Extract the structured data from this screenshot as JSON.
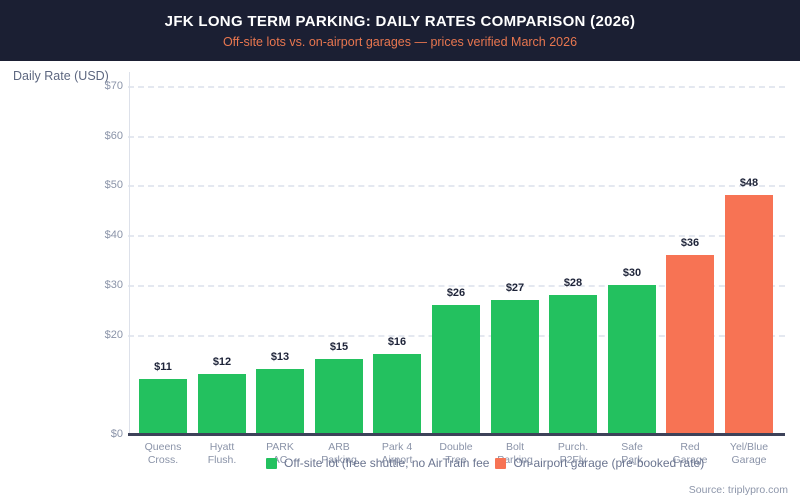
{
  "colors": {
    "header_bg": "#1b1f33",
    "title_text": "#ffffff",
    "subtitle_text": "#e8764f",
    "offsite_green": "#23c15f",
    "garage_orange": "#f77354",
    "grid_line": "#e4e8f0",
    "x_axis_line": "#3d4259",
    "tick_text": "#8a93a8",
    "category_text": "#8a93a8",
    "ylabel_text": "#5d6780",
    "value_text": "#1d2338",
    "legend_text": "#6b7590",
    "source_text": "#8d96aa"
  },
  "chart_data": {
    "type": "bar",
    "title": "JFK LONG TERM PARKING: DAILY RATES COMPARISON (2026)",
    "subtitle": "Off-site lots vs. on-airport garages — prices verified March 2026",
    "ylabel": "Daily Rate (USD)",
    "source": "Source: triplypro.com",
    "categories": [
      "Queens\nCross.",
      "Hyatt\nFlush.",
      "PARK\nAC",
      "ARB\nParking",
      "Park 4\nAirport",
      "Double\nTree",
      "Bolt\nParking",
      "Purch.\nP2Fly",
      "Safe\nPark",
      "Red\nGarage",
      "Yel/Blue\nGarage"
    ],
    "values": [
      11,
      12,
      13,
      15,
      16,
      26,
      27,
      28,
      30,
      36,
      48
    ],
    "value_labels": [
      "$11",
      "$12",
      "$13",
      "$15",
      "$16",
      "$26",
      "$27",
      "$28",
      "$30",
      "$36",
      "$48"
    ],
    "groups": [
      "offsite",
      "offsite",
      "offsite",
      "offsite",
      "offsite",
      "offsite",
      "offsite",
      "offsite",
      "offsite",
      "garage",
      "garage"
    ],
    "series_colors": {
      "offsite": "#23c15f",
      "garage": "#f77354"
    },
    "yticks": [
      0,
      20,
      30,
      40,
      50,
      60,
      70
    ],
    "ytick_labels": [
      "$0",
      "$20",
      "$30",
      "$40",
      "$50",
      "$60",
      "$70"
    ],
    "ylim": [
      0,
      70
    ],
    "grid": "horizontal dashed lines at labeled ticks above $0",
    "legend_position": "bottom",
    "legend": [
      {
        "label": "Off-site lot (free shuttle, no AirTrain fee",
        "group": "offsite",
        "color": "#23c15f"
      },
      {
        "label": "On-airport garage (pre-booked rate)",
        "group": "garage",
        "color": "#f77354"
      }
    ]
  }
}
